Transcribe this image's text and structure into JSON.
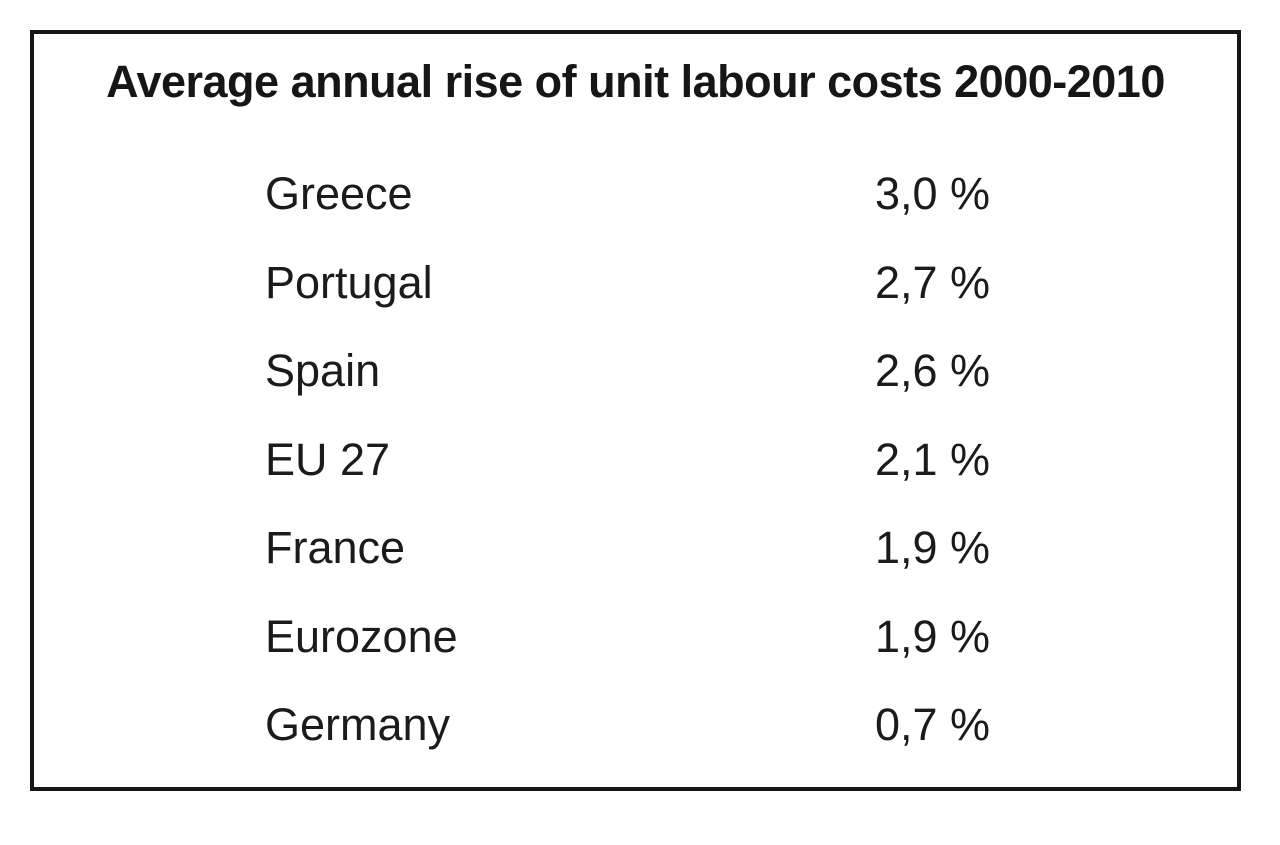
{
  "page": {
    "background": "#ffffff",
    "border_color": "#161616",
    "text_color": "#1b1b1b"
  },
  "chart_data": {
    "type": "table",
    "title": "Average annual rise of unit labour costs 2000-2010",
    "categories": [
      "Greece",
      "Portugal",
      "Spain",
      "EU 27",
      "France",
      "Eurozone",
      "Germany"
    ],
    "values": [
      3.0,
      2.7,
      2.6,
      2.1,
      1.9,
      1.9,
      0.7
    ],
    "unit": "%",
    "decimal_separator": ",",
    "rows": [
      {
        "label": "Greece",
        "value": "3,0 %"
      },
      {
        "label": "Portugal",
        "value": "2,7 %"
      },
      {
        "label": "Spain",
        "value": "2,6 %"
      },
      {
        "label": "EU 27",
        "value": "2,1 %"
      },
      {
        "label": "France",
        "value": "1,9 %"
      },
      {
        "label": "Eurozone",
        "value": "1,9 %"
      },
      {
        "label": "Germany",
        "value": "0,7 %"
      }
    ]
  }
}
